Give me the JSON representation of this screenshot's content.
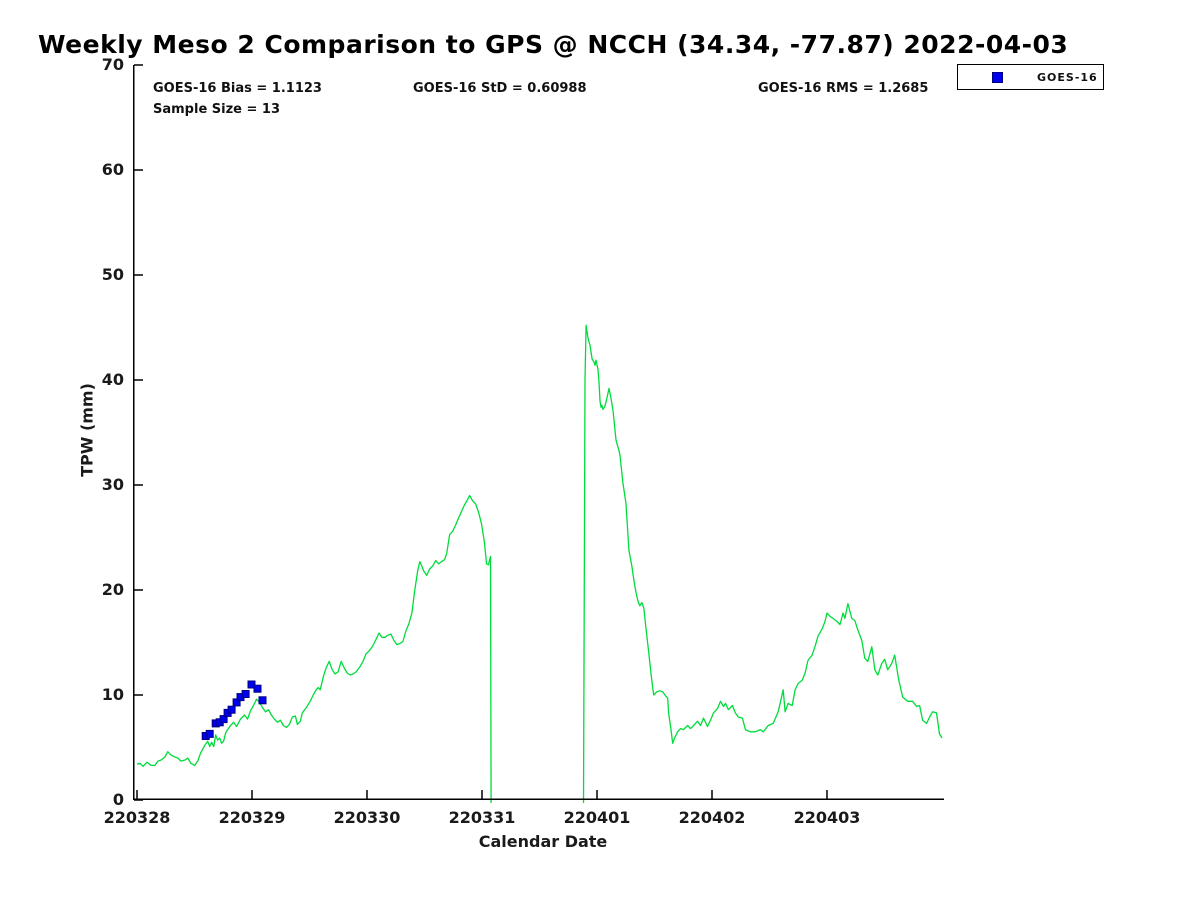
{
  "title": "Weekly Meso 2 Comparison to GPS @ NCCH (34.34, -77.87) 2022-04-03",
  "stats": {
    "bias": "GOES-16 Bias = 1.1123",
    "std": "GOES-16 StD = 0.60988",
    "rms": "GOES-16 RMS = 1.2685",
    "sample": "Sample Size = 13"
  },
  "legend": {
    "items": [
      {
        "label": "GOES-16",
        "marker": "square",
        "color": "#0000f0"
      }
    ]
  },
  "colors": {
    "line_green": "#00dc3c",
    "marker_blue": "#0000f0",
    "marker_edge": "#000080",
    "axis": "#000000",
    "text": "#1a1a1a"
  },
  "chart_data": {
    "type": "line",
    "title": "Weekly Meso 2 Comparison to GPS @ NCCH (34.34, -77.87) 2022-04-03",
    "xlabel": "Calendar Date",
    "ylabel": "TPW (mm)",
    "xlim": [
      0,
      7
    ],
    "ylim": [
      0,
      70
    ],
    "grid": false,
    "legend_position": "top-right",
    "xticks": {
      "positions": [
        0,
        1,
        2,
        3,
        4,
        5,
        6
      ],
      "labels": [
        "220328",
        "220329",
        "220330",
        "220331",
        "220401",
        "220402",
        "220403"
      ]
    },
    "yticks": {
      "positions": [
        0,
        10,
        20,
        30,
        40,
        50,
        60,
        70
      ],
      "labels": [
        "0",
        "10",
        "20",
        "30",
        "40",
        "50",
        "60",
        "70"
      ]
    },
    "series": [
      {
        "id": "tpw-timeseries",
        "type": "line",
        "color": "#00dc3c",
        "x_unit": "days since 220328",
        "y_unit": "mm",
        "segments": [
          [
            [
              0.0,
              3.4
            ],
            [
              0.026,
              3.5
            ],
            [
              0.052,
              3.2
            ],
            [
              0.087,
              3.6
            ],
            [
              0.121,
              3.3
            ],
            [
              0.156,
              3.3
            ],
            [
              0.182,
              3.7
            ],
            [
              0.208,
              3.8
            ],
            [
              0.242,
              4.1
            ],
            [
              0.268,
              4.6
            ],
            [
              0.294,
              4.3
            ],
            [
              0.329,
              4.1
            ],
            [
              0.355,
              4.0
            ],
            [
              0.381,
              3.7
            ],
            [
              0.416,
              3.8
            ],
            [
              0.442,
              4.0
            ],
            [
              0.468,
              3.5
            ],
            [
              0.502,
              3.3
            ],
            [
              0.528,
              3.7
            ],
            [
              0.554,
              4.5
            ],
            [
              0.589,
              5.2
            ],
            [
              0.615,
              5.6
            ],
            [
              0.632,
              5.1
            ],
            [
              0.649,
              5.5
            ],
            [
              0.667,
              5.1
            ],
            [
              0.684,
              6.2
            ],
            [
              0.701,
              5.7
            ],
            [
              0.719,
              5.9
            ],
            [
              0.736,
              5.4
            ],
            [
              0.753,
              5.6
            ],
            [
              0.771,
              6.4
            ],
            [
              0.788,
              6.7
            ],
            [
              0.814,
              7.1
            ],
            [
              0.84,
              7.4
            ],
            [
              0.866,
              7.0
            ],
            [
              0.9,
              7.7
            ],
            [
              0.935,
              8.1
            ],
            [
              0.961,
              7.7
            ],
            [
              0.987,
              8.5
            ],
            [
              1.013,
              9.0
            ],
            [
              1.039,
              9.6
            ],
            [
              1.065,
              9.3
            ],
            [
              1.091,
              8.8
            ],
            [
              1.117,
              8.4
            ],
            [
              1.143,
              8.6
            ],
            [
              1.169,
              8.1
            ],
            [
              1.195,
              7.7
            ],
            [
              1.221,
              7.4
            ],
            [
              1.247,
              7.6
            ],
            [
              1.273,
              7.1
            ],
            [
              1.299,
              6.9
            ],
            [
              1.325,
              7.2
            ],
            [
              1.351,
              7.9
            ],
            [
              1.377,
              8.0
            ],
            [
              1.394,
              7.2
            ],
            [
              1.42,
              7.5
            ],
            [
              1.437,
              8.3
            ],
            [
              1.472,
              8.8
            ],
            [
              1.506,
              9.4
            ],
            [
              1.532,
              10.0
            ],
            [
              1.558,
              10.5
            ],
            [
              1.576,
              10.7
            ],
            [
              1.593,
              10.5
            ],
            [
              1.619,
              11.7
            ],
            [
              1.645,
              12.6
            ],
            [
              1.671,
              13.2
            ],
            [
              1.697,
              12.4
            ],
            [
              1.723,
              12.0
            ],
            [
              1.749,
              12.2
            ],
            [
              1.775,
              13.2
            ],
            [
              1.801,
              12.6
            ],
            [
              1.827,
              12.1
            ],
            [
              1.853,
              11.9
            ],
            [
              1.879,
              12.0
            ],
            [
              1.905,
              12.2
            ],
            [
              1.939,
              12.7
            ],
            [
              1.965,
              13.2
            ],
            [
              1.991,
              13.9
            ],
            [
              2.026,
              14.3
            ],
            [
              2.052,
              14.7
            ],
            [
              2.078,
              15.3
            ],
            [
              2.104,
              15.9
            ],
            [
              2.13,
              15.5
            ],
            [
              2.156,
              15.5
            ],
            [
              2.182,
              15.7
            ],
            [
              2.208,
              15.8
            ],
            [
              2.234,
              15.2
            ],
            [
              2.26,
              14.8
            ],
            [
              2.286,
              14.9
            ],
            [
              2.312,
              15.1
            ],
            [
              2.338,
              16.1
            ],
            [
              2.364,
              16.8
            ],
            [
              2.39,
              17.8
            ],
            [
              2.416,
              20.0
            ],
            [
              2.442,
              21.9
            ],
            [
              2.459,
              22.7
            ],
            [
              2.476,
              22.3
            ],
            [
              2.494,
              21.8
            ],
            [
              2.519,
              21.4
            ],
            [
              2.545,
              22.0
            ],
            [
              2.571,
              22.3
            ],
            [
              2.597,
              22.8
            ],
            [
              2.623,
              22.5
            ],
            [
              2.649,
              22.7
            ],
            [
              2.675,
              22.9
            ],
            [
              2.693,
              23.5
            ],
            [
              2.719,
              25.3
            ],
            [
              2.745,
              25.6
            ],
            [
              2.771,
              26.2
            ],
            [
              2.797,
              26.9
            ],
            [
              2.823,
              27.5
            ],
            [
              2.848,
              28.1
            ],
            [
              2.874,
              28.6
            ],
            [
              2.892,
              29.0
            ],
            [
              2.918,
              28.5
            ],
            [
              2.944,
              28.2
            ],
            [
              2.97,
              27.4
            ],
            [
              2.996,
              26.3
            ],
            [
              3.022,
              24.5
            ],
            [
              3.039,
              22.5
            ],
            [
              3.056,
              22.4
            ],
            [
              3.074,
              23.2
            ],
            [
              3.079,
              -0.8
            ]
          ],
          [
            [
              3.883,
              -0.8
            ],
            [
              3.896,
              40.0
            ],
            [
              3.905,
              45.2
            ],
            [
              3.922,
              44.0
            ],
            [
              3.939,
              43.3
            ],
            [
              3.957,
              42.0
            ],
            [
              3.974,
              41.7
            ],
            [
              3.983,
              41.4
            ],
            [
              3.991,
              41.9
            ],
            [
              4.009,
              41.0
            ],
            [
              4.017,
              39.8
            ],
            [
              4.026,
              38.0
            ],
            [
              4.035,
              37.4
            ],
            [
              4.043,
              37.6
            ],
            [
              4.052,
              37.2
            ],
            [
              4.069,
              37.5
            ],
            [
              4.087,
              38.3
            ],
            [
              4.104,
              39.2
            ],
            [
              4.121,
              38.3
            ],
            [
              4.139,
              37.1
            ],
            [
              4.165,
              34.3
            ],
            [
              4.19,
              33.3
            ],
            [
              4.199,
              32.9
            ],
            [
              4.225,
              30.2
            ],
            [
              4.251,
              28.3
            ],
            [
              4.277,
              23.8
            ],
            [
              4.303,
              22.3
            ],
            [
              4.32,
              21.0
            ],
            [
              4.338,
              19.8
            ],
            [
              4.355,
              19.0
            ],
            [
              4.372,
              18.5
            ],
            [
              4.39,
              18.8
            ],
            [
              4.407,
              18.3
            ],
            [
              4.424,
              16.5
            ],
            [
              4.45,
              14.0
            ],
            [
              4.468,
              12.2
            ],
            [
              4.485,
              10.6
            ],
            [
              4.494,
              10.0
            ],
            [
              4.519,
              10.3
            ],
            [
              4.545,
              10.4
            ],
            [
              4.571,
              10.3
            ],
            [
              4.597,
              9.9
            ],
            [
              4.615,
              9.7
            ],
            [
              4.623,
              8.3
            ],
            [
              4.641,
              6.9
            ],
            [
              4.658,
              5.4
            ],
            [
              4.675,
              5.9
            ],
            [
              4.701,
              6.5
            ],
            [
              4.727,
              6.8
            ],
            [
              4.753,
              6.7
            ],
            [
              4.788,
              7.1
            ],
            [
              4.814,
              6.8
            ],
            [
              4.84,
              7.1
            ],
            [
              4.874,
              7.5
            ],
            [
              4.9,
              7.1
            ],
            [
              4.926,
              7.8
            ],
            [
              4.961,
              7.0
            ],
            [
              4.987,
              7.6
            ],
            [
              5.013,
              8.3
            ],
            [
              5.048,
              8.7
            ],
            [
              5.074,
              9.4
            ],
            [
              5.1,
              8.9
            ],
            [
              5.117,
              9.2
            ],
            [
              5.143,
              8.6
            ],
            [
              5.177,
              9.0
            ],
            [
              5.203,
              8.3
            ],
            [
              5.229,
              7.9
            ],
            [
              5.264,
              7.8
            ],
            [
              5.29,
              6.7
            ],
            [
              5.333,
              6.5
            ],
            [
              5.377,
              6.5
            ],
            [
              5.42,
              6.7
            ],
            [
              5.446,
              6.5
            ],
            [
              5.489,
              7.1
            ],
            [
              5.532,
              7.3
            ],
            [
              5.576,
              8.4
            ],
            [
              5.619,
              10.5
            ],
            [
              5.636,
              8.4
            ],
            [
              5.662,
              9.2
            ],
            [
              5.697,
              9.0
            ],
            [
              5.723,
              10.5
            ],
            [
              5.749,
              11.1
            ],
            [
              5.784,
              11.4
            ],
            [
              5.81,
              12.1
            ],
            [
              5.835,
              13.3
            ],
            [
              5.87,
              13.8
            ],
            [
              5.896,
              14.6
            ],
            [
              5.922,
              15.6
            ],
            [
              5.957,
              16.3
            ],
            [
              5.983,
              17.0
            ],
            [
              6.0,
              17.8
            ],
            [
              6.026,
              17.5
            ],
            [
              6.052,
              17.3
            ],
            [
              6.087,
              17.0
            ],
            [
              6.113,
              16.7
            ],
            [
              6.139,
              17.8
            ],
            [
              6.156,
              17.3
            ],
            [
              6.182,
              18.7
            ],
            [
              6.216,
              17.3
            ],
            [
              6.242,
              17.1
            ],
            [
              6.268,
              16.2
            ],
            [
              6.303,
              15.2
            ],
            [
              6.329,
              13.5
            ],
            [
              6.355,
              13.2
            ],
            [
              6.39,
              14.6
            ],
            [
              6.416,
              12.4
            ],
            [
              6.442,
              11.9
            ],
            [
              6.476,
              13.0
            ],
            [
              6.502,
              13.4
            ],
            [
              6.528,
              12.4
            ],
            [
              6.563,
              13.0
            ],
            [
              6.589,
              13.8
            ],
            [
              6.623,
              11.5
            ],
            [
              6.658,
              9.8
            ],
            [
              6.701,
              9.4
            ],
            [
              6.745,
              9.4
            ],
            [
              6.779,
              8.9
            ],
            [
              6.805,
              9.0
            ],
            [
              6.831,
              7.6
            ],
            [
              6.866,
              7.3
            ],
            [
              6.892,
              7.9
            ],
            [
              6.918,
              8.4
            ],
            [
              6.952,
              8.3
            ],
            [
              6.978,
              6.3
            ],
            [
              7.0,
              5.9
            ]
          ]
        ]
      },
      {
        "id": "goes16-scatter",
        "name": "GOES-16",
        "type": "scatter",
        "marker": "square",
        "color": "#0000f0",
        "points": [
          [
            0.597,
            6.1
          ],
          [
            0.632,
            6.3
          ],
          [
            0.684,
            7.3
          ],
          [
            0.719,
            7.4
          ],
          [
            0.753,
            7.7
          ],
          [
            0.788,
            8.3
          ],
          [
            0.823,
            8.6
          ],
          [
            0.866,
            9.3
          ],
          [
            0.9,
            9.8
          ],
          [
            0.944,
            10.1
          ],
          [
            0.996,
            11.0
          ],
          [
            1.048,
            10.6
          ],
          [
            1.091,
            9.5
          ]
        ]
      }
    ]
  }
}
